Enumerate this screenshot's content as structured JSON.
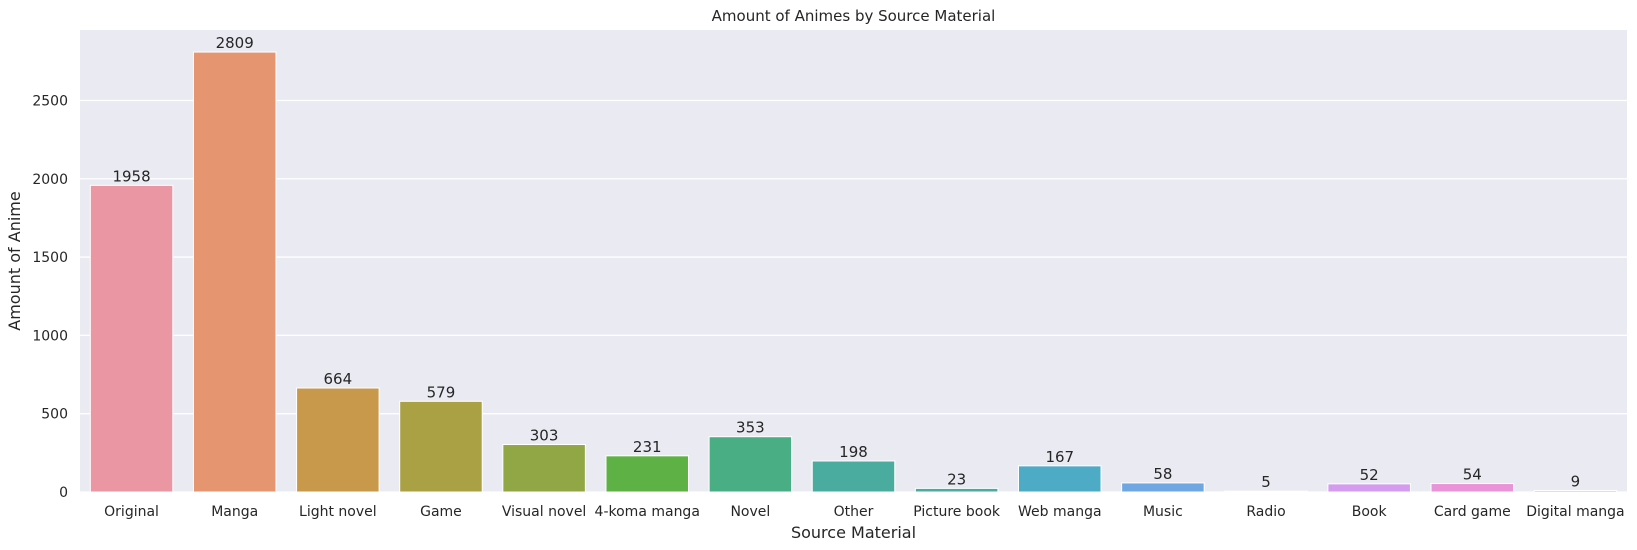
{
  "chart_data": {
    "type": "bar",
    "title": "Amount of Animes by Source Material",
    "xlabel": "Source Material",
    "ylabel": "Amount of Anime",
    "ylim": [
      0,
      2950
    ],
    "yticks": [
      0,
      500,
      1000,
      1500,
      2000,
      2500
    ],
    "grid": true,
    "plot_background": "#eaeaf2",
    "grid_color": "#ffffff",
    "categories": [
      "Original",
      "Manga",
      "Light novel",
      "Game",
      "Visual novel",
      "4-koma manga",
      "Novel",
      "Other",
      "Picture book",
      "Web manga",
      "Music",
      "Radio",
      "Book",
      "Card game",
      "Digital manga"
    ],
    "values": [
      1958,
      2809,
      664,
      579,
      303,
      231,
      353,
      198,
      23,
      167,
      58,
      5,
      52,
      54,
      9
    ],
    "colors": [
      "#ea96a3",
      "#e5956f",
      "#c8994a",
      "#aaa044",
      "#91a644",
      "#5eb245",
      "#49ae83",
      "#4aac9e",
      "#4bab9f",
      "#4eabc5",
      "#6ea7e1",
      "#a3a3f0",
      "#d49bee",
      "#e994d9",
      "#ea96c1"
    ]
  }
}
